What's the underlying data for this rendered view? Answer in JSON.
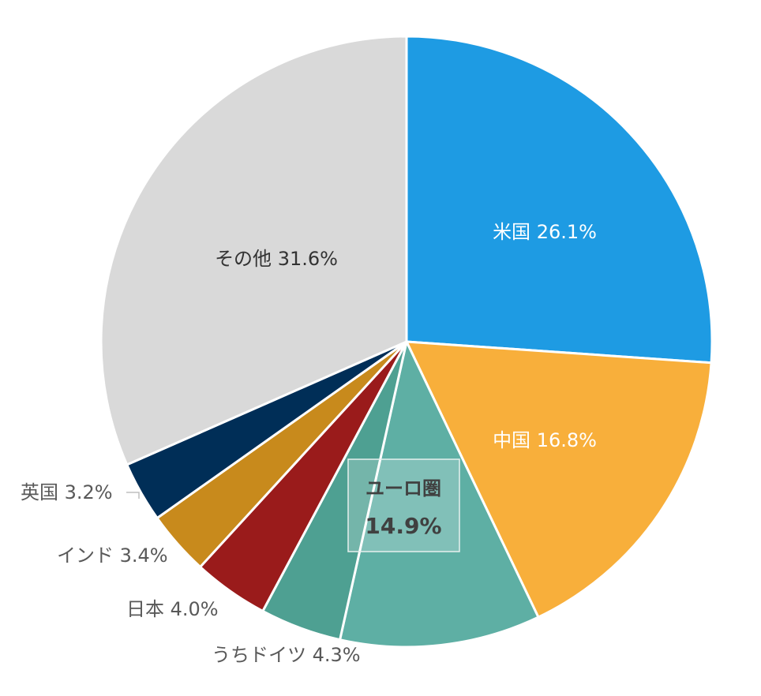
{
  "chart_data": {
    "type": "pie",
    "slices": [
      {
        "label": "米国",
        "value": 26.1,
        "display": "米国 26.1%",
        "color": "#1E9BE3"
      },
      {
        "label": "中国",
        "value": 16.8,
        "display": "中国 16.8%",
        "color": "#F8AF3B"
      },
      {
        "label": "ユーロ圏(その他)",
        "value": 10.6,
        "display": "",
        "color": "#5EAFA4"
      },
      {
        "label": "うちドイツ",
        "value": 4.3,
        "display": "うちドイツ 4.3%",
        "color": "#4EA092"
      },
      {
        "label": "日本",
        "value": 4.0,
        "display": "日本 4.0%",
        "color": "#9A1B1B"
      },
      {
        "label": "インド",
        "value": 3.4,
        "display": "インド 3.4%",
        "color": "#C88A1C"
      },
      {
        "label": "英国",
        "value": 3.2,
        "display": "英国 3.2%",
        "color": "#002E57"
      },
      {
        "label": "その他",
        "value": 31.6,
        "display": "その他 31.6%",
        "color": "#D9D9D9"
      }
    ],
    "group_annotation": {
      "title": "ユーロ圏",
      "value": "14.9%"
    },
    "start": "12 o'clock",
    "direction": "clockwise"
  }
}
